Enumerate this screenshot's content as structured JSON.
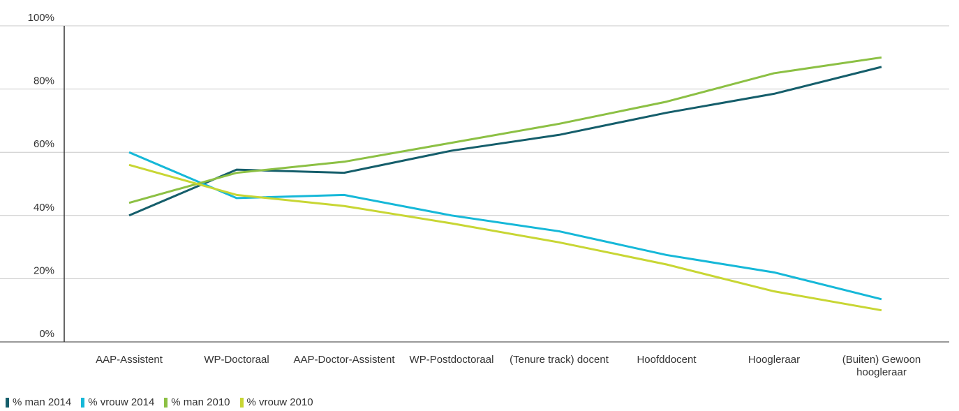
{
  "chart_data": {
    "type": "line",
    "categories": [
      [
        "AAP-Assistent"
      ],
      [
        "WP-Doctoraal"
      ],
      [
        "AAP-Doctor-Assistent"
      ],
      [
        "WP-Postdoctoraal"
      ],
      [
        "(Tenure track) docent"
      ],
      [
        "Hoofddocent"
      ],
      [
        "Hoogleraar"
      ],
      [
        "(Buiten) Gewoon",
        "hoogleraar"
      ]
    ],
    "ylim": [
      0,
      100
    ],
    "yticks": [
      "0%",
      "20%",
      "40%",
      "60%",
      "80%",
      "100%"
    ],
    "ytick_values": [
      0,
      20,
      40,
      60,
      80,
      100
    ],
    "grid": true,
    "legend_position": "bottom-left",
    "series": [
      {
        "name": "% man 2014",
        "color": "#155e6b",
        "values": [
          40,
          54.5,
          53.5,
          60.5,
          65.5,
          72.5,
          78.5,
          87
        ]
      },
      {
        "name": "% vrouw 2014",
        "color": "#16b8d8",
        "values": [
          60,
          45.5,
          46.5,
          40,
          35,
          27.5,
          22,
          13.5
        ]
      },
      {
        "name": "% man 2010",
        "color": "#8cc044",
        "values": [
          44,
          53.5,
          57,
          63,
          69,
          76,
          85,
          90
        ]
      },
      {
        "name": "% vrouw 2010",
        "color": "#c8d634",
        "values": [
          56,
          46.5,
          43,
          37.5,
          31.5,
          24.5,
          16,
          10
        ]
      }
    ]
  }
}
